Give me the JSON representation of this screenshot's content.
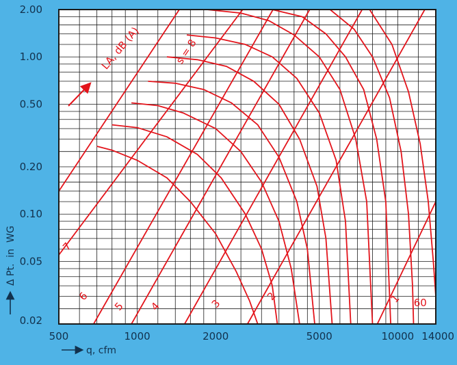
{
  "chart_data": {
    "type": "line",
    "title": "",
    "xlabel": "q, cfm",
    "ylabel": "Δ Pt.  in  WG",
    "x_scale": "log",
    "y_scale": "log",
    "xlim": [
      500,
      14000
    ],
    "ylim": [
      0.02,
      2.0
    ],
    "x_ticks": [
      {
        "v": 500,
        "label": "500"
      },
      {
        "v": 1000,
        "label": "1000"
      },
      {
        "v": 2000,
        "label": "2000"
      },
      {
        "v": 5000,
        "label": "5000"
      },
      {
        "v": 10000,
        "label": "10000"
      },
      {
        "v": 14000,
        "label": "14000"
      }
    ],
    "y_ticks": [
      {
        "v": 2.0,
        "label": "2.00"
      },
      {
        "v": 1.0,
        "label": "1.00"
      },
      {
        "v": 0.5,
        "label": "0.50"
      },
      {
        "v": 0.2,
        "label": "0.20"
      },
      {
        "v": 0.1,
        "label": "0.10"
      },
      {
        "v": 0.05,
        "label": "0.05"
      },
      {
        "v": 0.02,
        "label": "0.02"
      }
    ],
    "grid": true,
    "grid_x_values": [
      600,
      700,
      800,
      900,
      1000,
      1200,
      1400,
      1600,
      1800,
      2000,
      2500,
      3000,
      3500,
      4000,
      4500,
      5000,
      6000,
      7000,
      8000,
      9000,
      10000,
      12000,
      14000
    ],
    "grid_y_values": [
      0.02,
      0.025,
      0.03,
      0.035,
      0.04,
      0.045,
      0.05,
      0.06,
      0.07,
      0.08,
      0.09,
      0.1,
      0.12,
      0.14,
      0.16,
      0.18,
      0.2,
      0.25,
      0.3,
      0.35,
      0.4,
      0.45,
      0.5,
      0.6,
      0.7,
      0.8,
      0.9,
      1.0,
      1.2,
      1.4,
      1.6,
      1.8,
      2.0
    ],
    "system_lines": [
      {
        "label": "7",
        "points": [
          [
            500,
            0.14
          ],
          [
            1450,
            2.0
          ]
        ],
        "label_at": [
          550,
          0.06
        ]
      },
      {
        "label": "6",
        "points": [
          [
            500,
            0.055
          ],
          [
            2540,
            2.0
          ]
        ],
        "label_at": [
          635,
          0.029
        ]
      },
      {
        "label": "5",
        "points": [
          [
            680,
            0.02
          ],
          [
            3320,
            2.0
          ]
        ],
        "label_at": [
          870,
          0.025
        ]
      },
      {
        "label": "4",
        "points": [
          [
            950,
            0.02
          ],
          [
            4590,
            2.0
          ]
        ],
        "label_at": [
          1200,
          0.025
        ]
      },
      {
        "label": "3",
        "points": [
          [
            1520,
            0.02
          ],
          [
            7300,
            2.0
          ]
        ],
        "label_at": [
          2050,
          0.026
        ]
      },
      {
        "label": "2",
        "points": [
          [
            2650,
            0.02
          ],
          [
            12700,
            2.0
          ]
        ],
        "label_at": [
          3350,
          0.029
        ]
      },
      {
        "label": "1",
        "points": [
          [
            8350,
            0.02
          ],
          [
            14000,
            0.12
          ]
        ],
        "label_at": [
          10000,
          0.028
        ]
      }
    ],
    "fan_curves": [
      {
        "points": [
          [
            700,
            0.27
          ],
          [
            800,
            0.255
          ],
          [
            1000,
            0.22
          ],
          [
            1300,
            0.17
          ],
          [
            1600,
            0.12
          ],
          [
            2000,
            0.075
          ],
          [
            2400,
            0.043
          ],
          [
            2700,
            0.028
          ],
          [
            2900,
            0.02
          ]
        ]
      },
      {
        "points": [
          [
            800,
            0.37
          ],
          [
            1000,
            0.355
          ],
          [
            1300,
            0.31
          ],
          [
            1700,
            0.24
          ],
          [
            2100,
            0.17
          ],
          [
            2600,
            0.1
          ],
          [
            3000,
            0.06
          ],
          [
            3300,
            0.035
          ],
          [
            3450,
            0.02
          ]
        ]
      },
      {
        "points": [
          [
            950,
            0.51
          ],
          [
            1200,
            0.49
          ],
          [
            1500,
            0.44
          ],
          [
            2000,
            0.35
          ],
          [
            2500,
            0.25
          ],
          [
            3000,
            0.16
          ],
          [
            3500,
            0.09
          ],
          [
            3900,
            0.045
          ],
          [
            4200,
            0.02
          ]
        ]
      },
      {
        "points": [
          [
            1100,
            0.7
          ],
          [
            1400,
            0.68
          ],
          [
            1800,
            0.62
          ],
          [
            2300,
            0.51
          ],
          [
            2900,
            0.37
          ],
          [
            3500,
            0.23
          ],
          [
            4100,
            0.12
          ],
          [
            4500,
            0.06
          ],
          [
            4800,
            0.02
          ]
        ]
      },
      {
        "points": [
          [
            1300,
            1.0
          ],
          [
            1700,
            0.96
          ],
          [
            2200,
            0.87
          ],
          [
            2800,
            0.7
          ],
          [
            3500,
            0.5
          ],
          [
            4200,
            0.3
          ],
          [
            4900,
            0.15
          ],
          [
            5300,
            0.07
          ],
          [
            5600,
            0.02
          ]
        ]
      },
      {
        "points": [
          [
            1550,
            1.38
          ],
          [
            2000,
            1.32
          ],
          [
            2600,
            1.2
          ],
          [
            3300,
            1.0
          ],
          [
            4100,
            0.73
          ],
          [
            5000,
            0.44
          ],
          [
            5800,
            0.22
          ],
          [
            6300,
            0.09
          ],
          [
            6600,
            0.02
          ]
        ]
      },
      {
        "points": [
          [
            1850,
            2.0
          ],
          [
            2500,
            1.9
          ],
          [
            3200,
            1.7
          ],
          [
            4000,
            1.38
          ],
          [
            5000,
            1.0
          ],
          [
            6000,
            0.62
          ],
          [
            6900,
            0.3
          ],
          [
            7600,
            0.12
          ],
          [
            8000,
            0.02
          ]
        ]
      },
      {
        "points": [
          [
            3300,
            2.0
          ],
          [
            4300,
            1.8
          ],
          [
            5300,
            1.4
          ],
          [
            6300,
            1.0
          ],
          [
            7400,
            0.62
          ],
          [
            8300,
            0.3
          ],
          [
            9000,
            0.12
          ],
          [
            9400,
            0.02
          ]
        ]
      },
      {
        "points": [
          [
            5500,
            2.0
          ],
          [
            6800,
            1.5
          ],
          [
            8000,
            1.0
          ],
          [
            9300,
            0.55
          ],
          [
            10300,
            0.25
          ],
          [
            11000,
            0.1
          ],
          [
            11400,
            0.035
          ],
          [
            11500,
            0.02
          ]
        ]
      },
      {
        "points": [
          [
            7800,
            2.0
          ],
          [
            9500,
            1.2
          ],
          [
            11000,
            0.6
          ],
          [
            12200,
            0.28
          ],
          [
            13100,
            0.12
          ],
          [
            13700,
            0.05
          ],
          [
            14000,
            0.03
          ]
        ]
      }
    ],
    "annotations": [
      {
        "text": "s = 8",
        "at": [
          1580,
          1.05
        ],
        "rotate": -56
      },
      {
        "text": "LA, dB (A)",
        "at": [
          880,
          1.1
        ],
        "rotate": -50
      },
      {
        "text": "60",
        "at": [
          12200,
          0.026
        ],
        "rotate": 0
      }
    ],
    "colors": {
      "curves": "#e3141b",
      "grid": "#1a1a1a",
      "axis_text": "#12314d",
      "background": "#4fb3e6",
      "plot_background": "#ffffff"
    }
  }
}
